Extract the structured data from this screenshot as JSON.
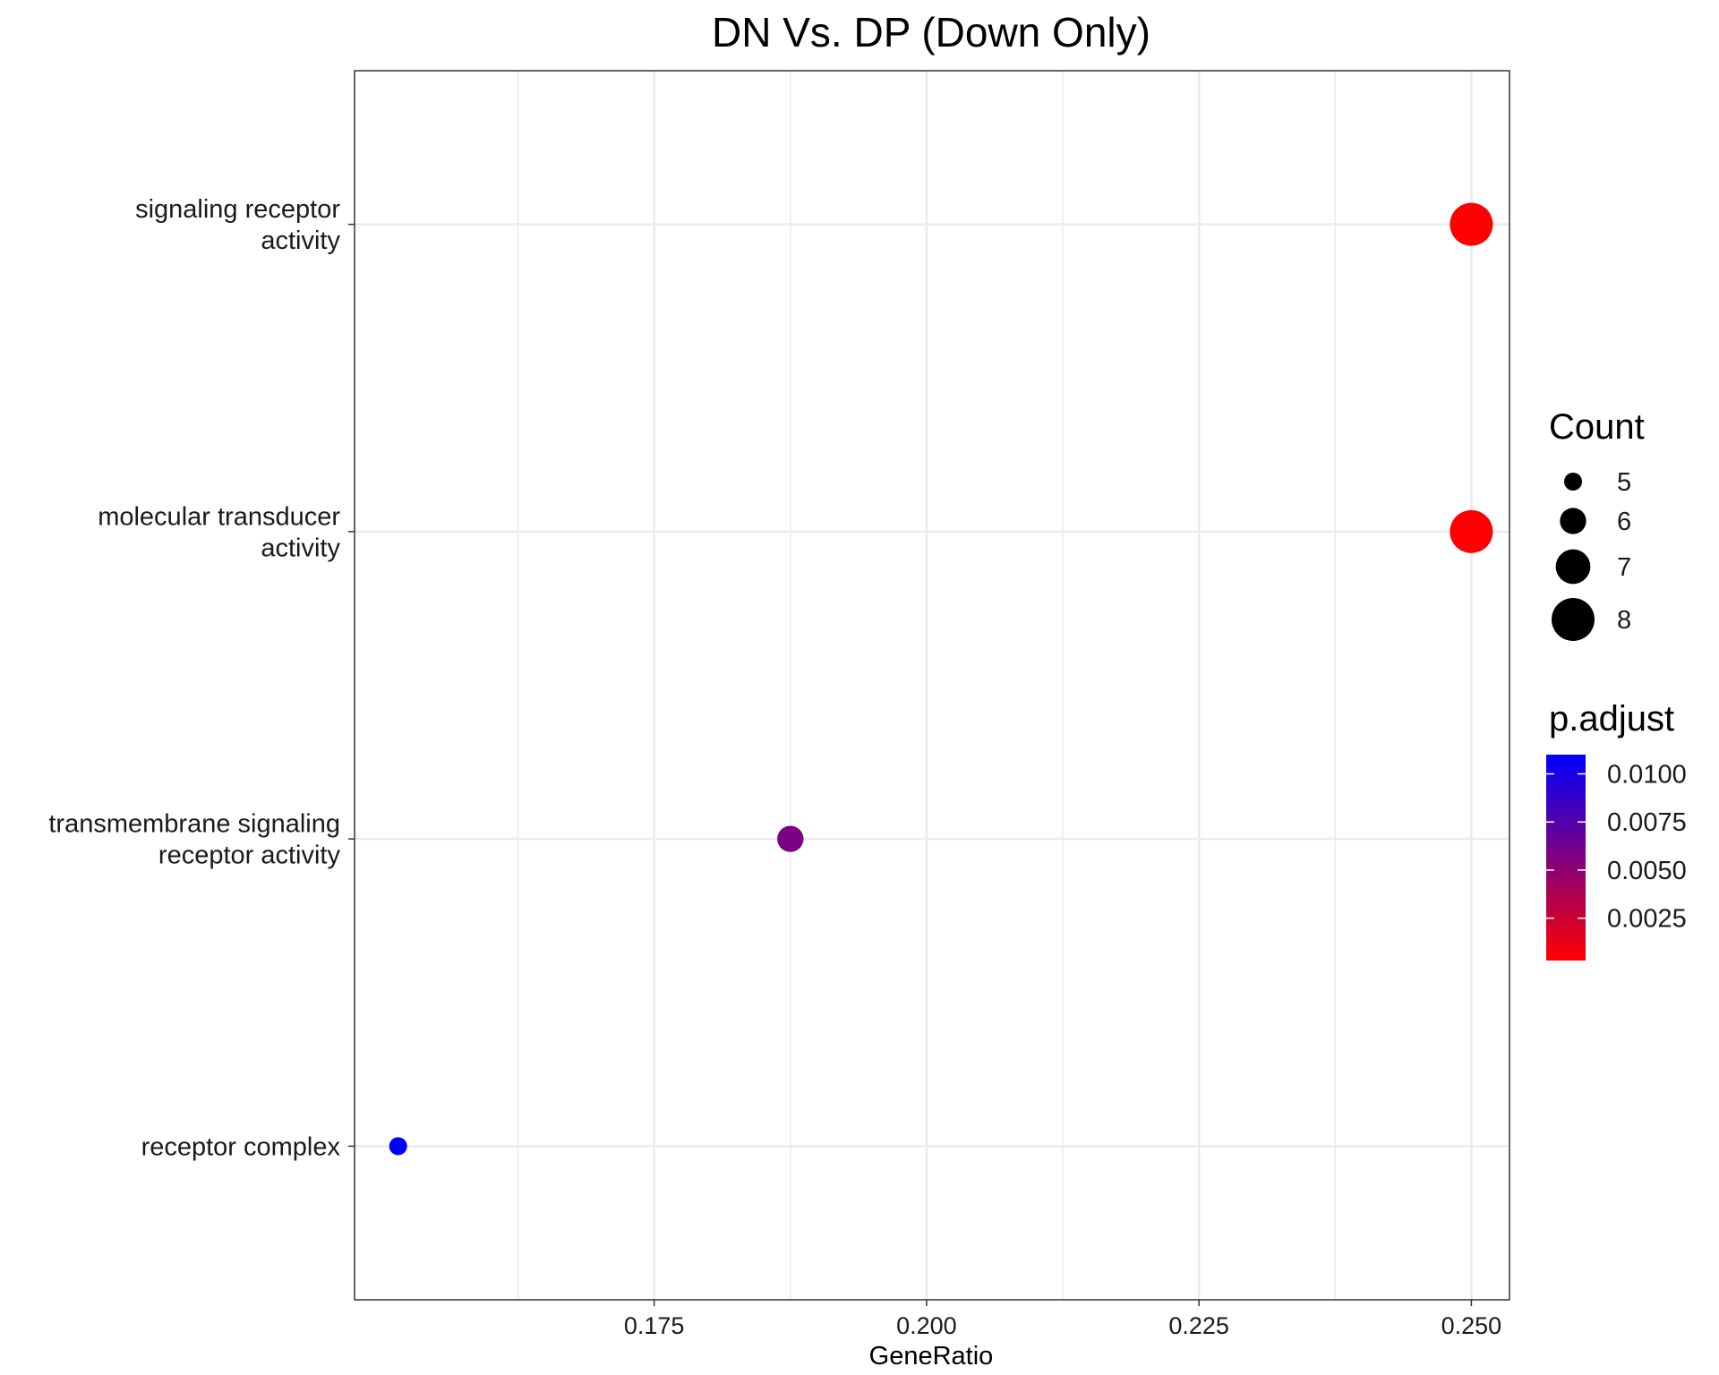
{
  "chart_data": {
    "type": "scatter",
    "title": "DN Vs. DP (Down Only)",
    "xlabel": "GeneRatio",
    "ylabel": "",
    "xlim": [
      0.1475,
      0.2535
    ],
    "x_ticks": [
      0.175,
      0.2,
      0.225,
      0.25
    ],
    "x_tick_labels": [
      "0.175",
      "0.200",
      "0.225",
      "0.250"
    ],
    "grid": true,
    "categories": [
      {
        "label_lines": [
          "signaling receptor",
          "activity"
        ]
      },
      {
        "label_lines": [
          "molecular transducer",
          "activity"
        ]
      },
      {
        "label_lines": [
          "transmembrane signaling",
          "receptor activity"
        ]
      },
      {
        "label_lines": [
          "receptor complex"
        ]
      }
    ],
    "points": [
      {
        "category": 0,
        "x": 0.25,
        "count": 8,
        "p_adjust": 0.0003
      },
      {
        "category": 1,
        "x": 0.25,
        "count": 8,
        "p_adjust": 0.0003
      },
      {
        "category": 2,
        "x": 0.1875,
        "count": 6,
        "p_adjust": 0.0058
      },
      {
        "category": 3,
        "x": 0.1515,
        "count": 5,
        "p_adjust": 0.011
      }
    ],
    "size_legend": {
      "title": "Count",
      "values": [
        5,
        6,
        7,
        8
      ],
      "labels": [
        "5",
        "6",
        "7",
        "8"
      ],
      "color": "#000000"
    },
    "color_legend": {
      "title": "p.adjust",
      "range": [
        0.0003,
        0.011
      ],
      "ticks": [
        0.01,
        0.0075,
        0.005,
        0.0025
      ],
      "tick_labels": [
        "0.0100",
        "0.0075",
        "0.0050",
        "0.0025"
      ],
      "low_color": "#ff0000",
      "high_color": "#0000ff"
    },
    "legend_position": "right"
  }
}
